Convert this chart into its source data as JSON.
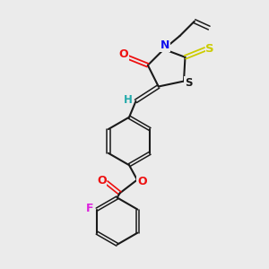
{
  "background_color": "#ebebeb",
  "bond_color": "#1a1a1a",
  "atom_colors": {
    "N": "#1010ee",
    "O": "#ee1010",
    "S_thioxo": "#cccc00",
    "S_ring": "#1a1a1a",
    "F": "#dd22dd",
    "H": "#22aaaa",
    "C": "#1a1a1a"
  },
  "figsize": [
    3.0,
    3.0
  ],
  "dpi": 100
}
